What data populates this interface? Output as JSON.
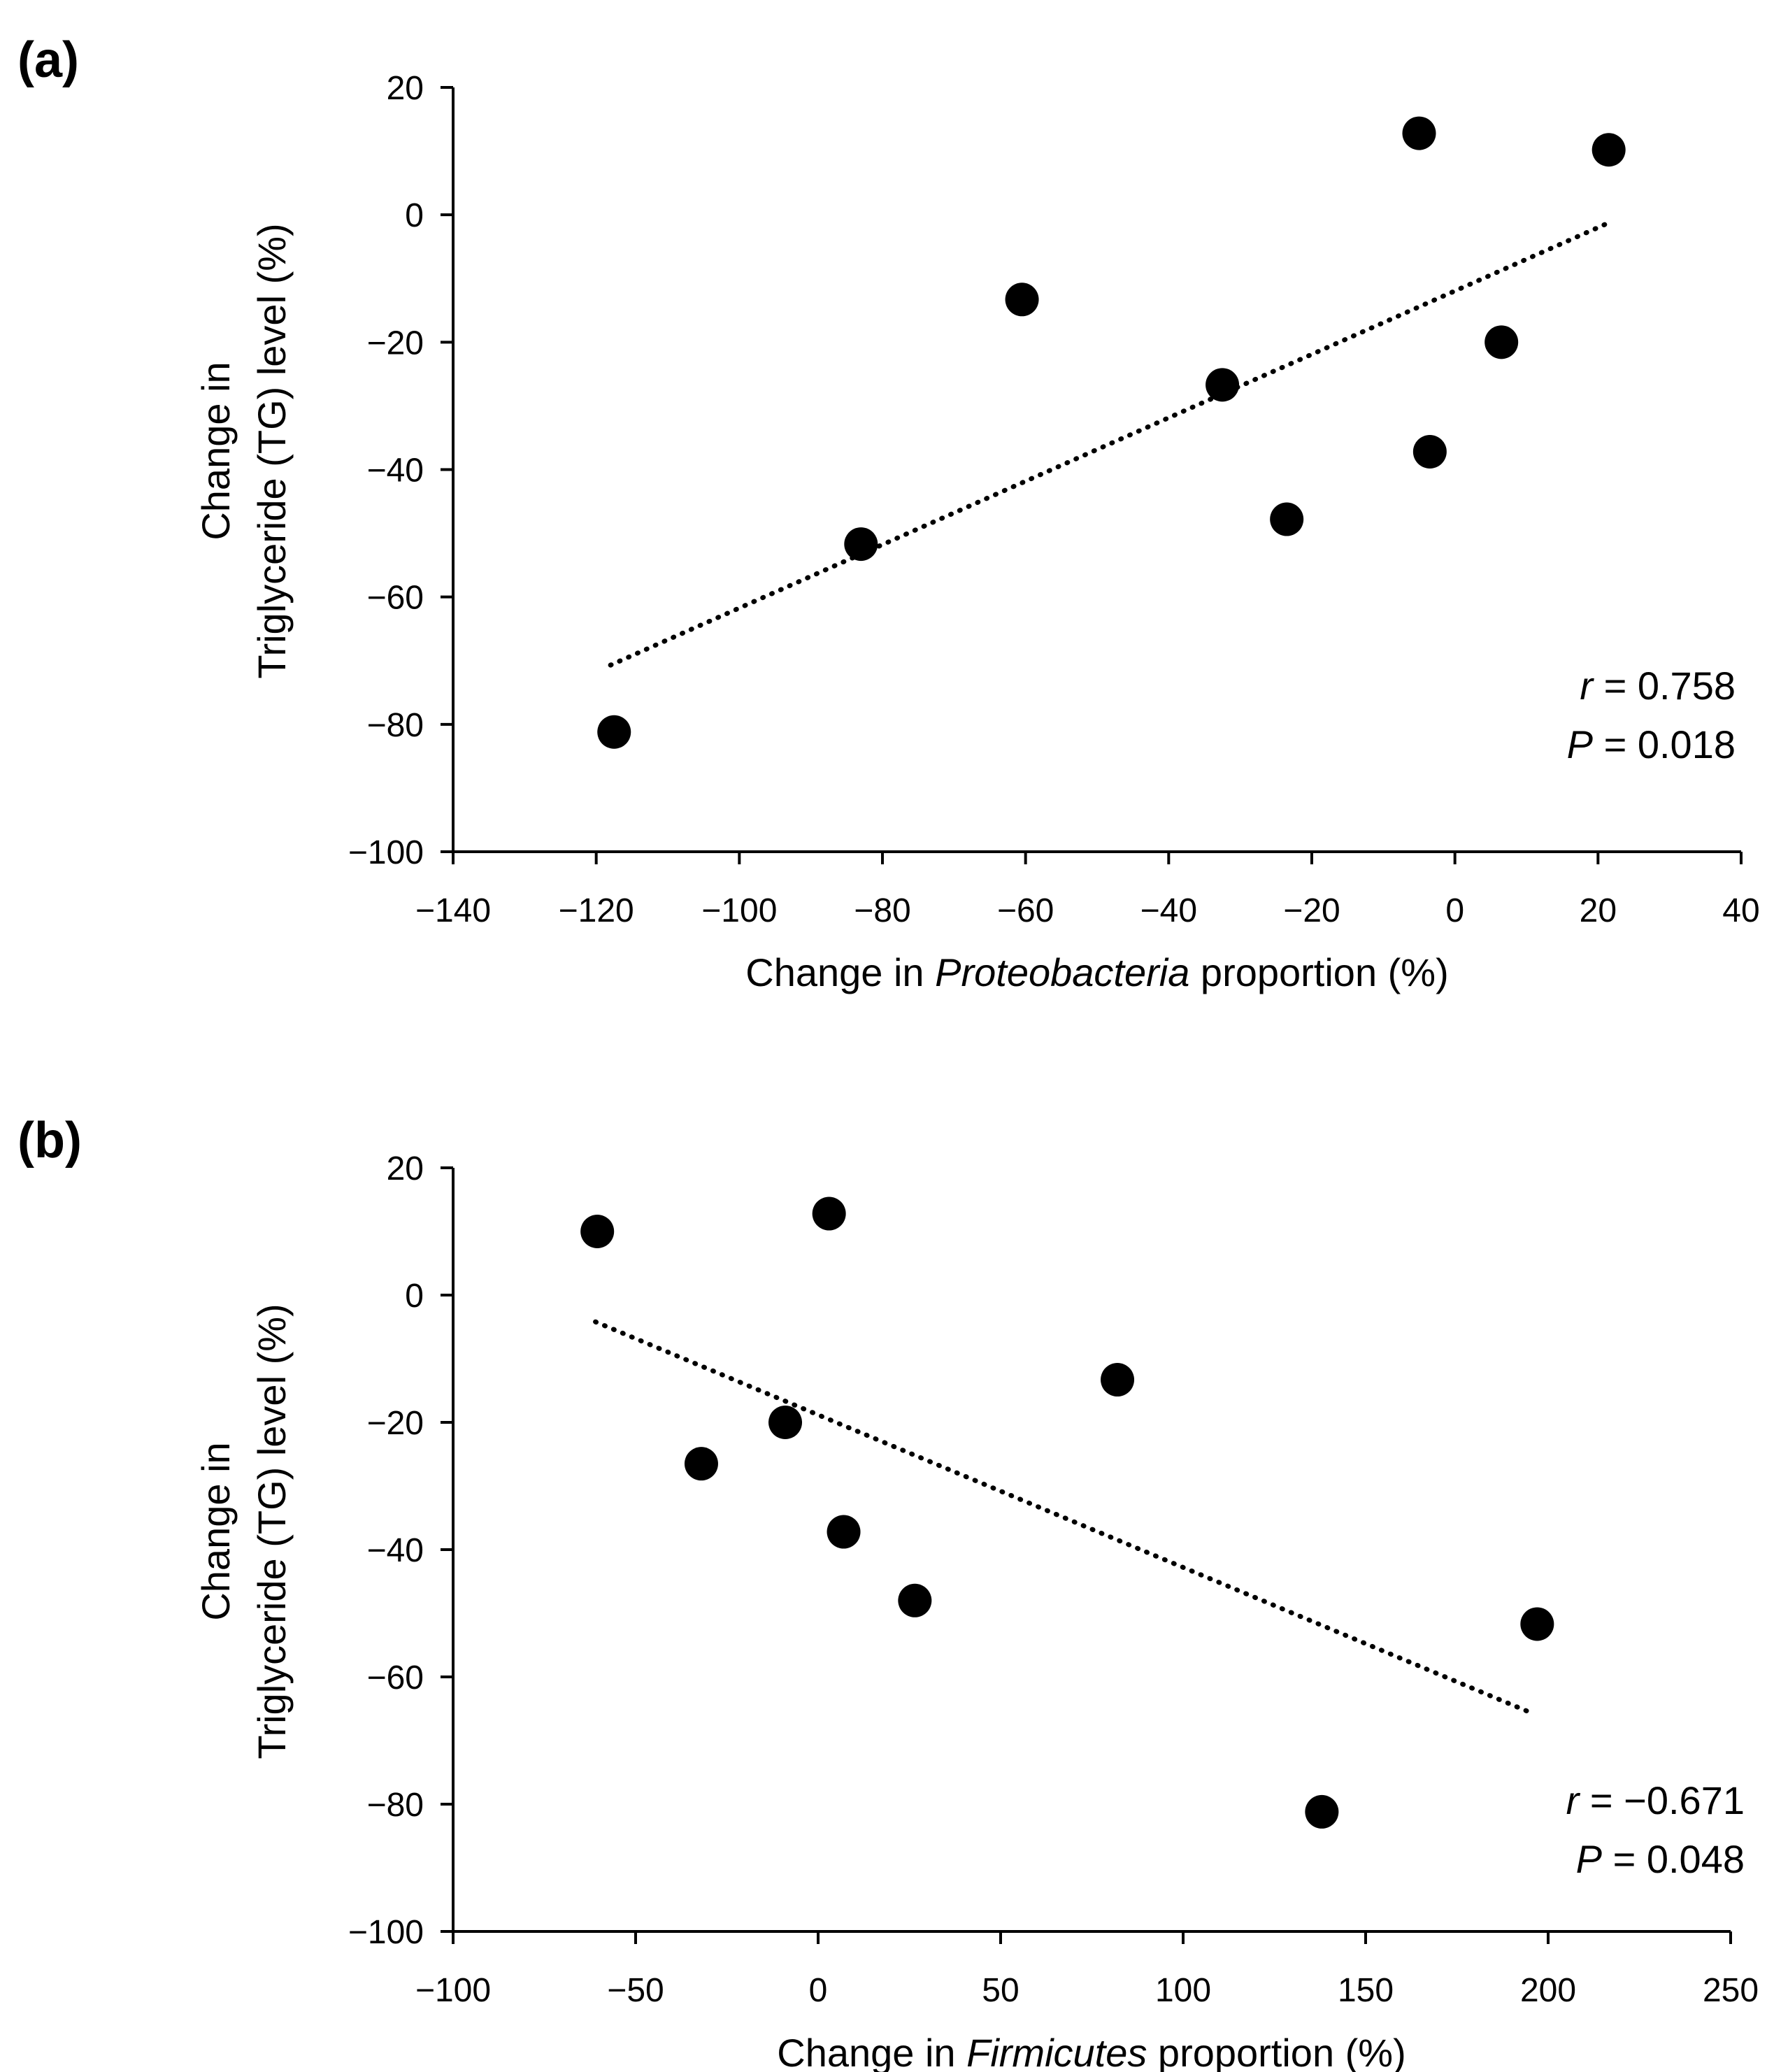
{
  "chart_data": [
    {
      "type": "scatter",
      "panel_label": "(a)",
      "title": "",
      "xlabel_prefix": "Change in ",
      "xlabel_italic": "Proteobacteria",
      "xlabel_suffix": " proportion (%)",
      "ylabel_line1": "Change in",
      "ylabel_line2": "Triglyceride (TG) level (%)",
      "xlim": [
        -140,
        40
      ],
      "ylim": [
        -100,
        20
      ],
      "xticks": [
        -140,
        -120,
        -100,
        -80,
        -60,
        -40,
        -20,
        0,
        20,
        40
      ],
      "yticks": [
        -100,
        -80,
        -60,
        -40,
        -20,
        0,
        20
      ],
      "xtick_labels": [
        "−140",
        "−120",
        "−100",
        "−80",
        "−60",
        "−40",
        "−20",
        "0",
        "20",
        "40"
      ],
      "ytick_labels": [
        "−100",
        "−80",
        "−60",
        "−40",
        "−20",
        "0",
        "20"
      ],
      "points": [
        {
          "x": -117.5,
          "y": -81.2
        },
        {
          "x": -83,
          "y": -51.7
        },
        {
          "x": -60.5,
          "y": -13.3
        },
        {
          "x": -32.5,
          "y": -26.7
        },
        {
          "x": -23.5,
          "y": -47.8
        },
        {
          "x": -5,
          "y": 12.8
        },
        {
          "x": -3.5,
          "y": -37.2
        },
        {
          "x": 6.5,
          "y": -20.0
        },
        {
          "x": 21.5,
          "y": 10.2
        }
      ],
      "trendline": {
        "x": [
          -118,
          21
        ],
        "y": [
          -70.7,
          -1.5
        ]
      },
      "stat_r_italic": "r",
      "stat_r_value": " = 0.758",
      "stat_p_italic": "P",
      "stat_p_value": " = 0.018"
    },
    {
      "type": "scatter",
      "panel_label": "(b)",
      "title": "",
      "xlabel_prefix": "Change in ",
      "xlabel_italic": "Firmicutes",
      "xlabel_suffix": " proportion (%)",
      "ylabel_line1": "Change in",
      "ylabel_line2": "Triglyceride (TG) level (%)",
      "xlim": [
        -100,
        250
      ],
      "ylim": [
        -100,
        20
      ],
      "xticks": [
        -100,
        -50,
        0,
        50,
        100,
        150,
        200,
        250
      ],
      "yticks": [
        -100,
        -80,
        -60,
        -40,
        -20,
        0,
        20
      ],
      "xtick_labels": [
        "−100",
        "−50",
        "0",
        "50",
        "100",
        "150",
        "200",
        "250"
      ],
      "ytick_labels": [
        "−100",
        "−80",
        "−60",
        "−40",
        "−20",
        "0",
        "20"
      ],
      "points": [
        {
          "x": -60.5,
          "y": 10.0
        },
        {
          "x": 3,
          "y": 12.8
        },
        {
          "x": -9,
          "y": -20.0
        },
        {
          "x": -32,
          "y": -26.5
        },
        {
          "x": 7,
          "y": -37.2
        },
        {
          "x": 26.5,
          "y": -48.0
        },
        {
          "x": 82,
          "y": -13.3
        },
        {
          "x": 197,
          "y": -51.7
        },
        {
          "x": 138,
          "y": -81.2
        }
      ],
      "trendline": {
        "x": [
          -61,
          196
        ],
        "y": [
          -4.2,
          -65.8
        ]
      },
      "stat_r_italic": "r",
      "stat_r_value": " = −0.671",
      "stat_p_italic": "P",
      "stat_p_value": " = 0.048"
    }
  ]
}
